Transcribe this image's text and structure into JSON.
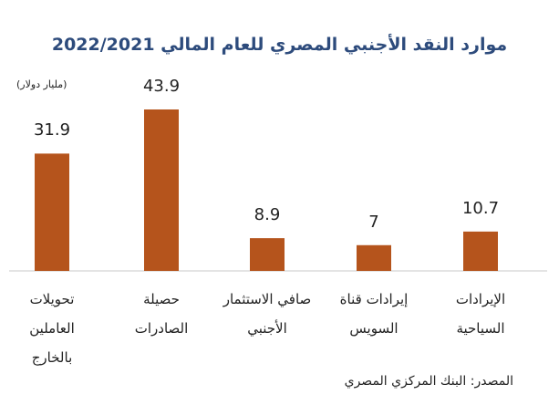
{
  "chart_data": {
    "type": "bar",
    "title": "موارد النقد الأجنبي المصري للعام المالي 2022/2021",
    "unit": "(مليار دولار)",
    "categories": [
      "تحويلات العاملين بالخارج",
      "حصيلة الصادرات",
      "صافي الاستثمار الأجنبي",
      "إيرادات قناة السويس",
      "الإيرادات السياحية"
    ],
    "values": [
      31.9,
      43.9,
      8.9,
      7,
      10.7
    ],
    "color": "#b5541c",
    "source": "المصدر: البنك المركزي المصري"
  }
}
